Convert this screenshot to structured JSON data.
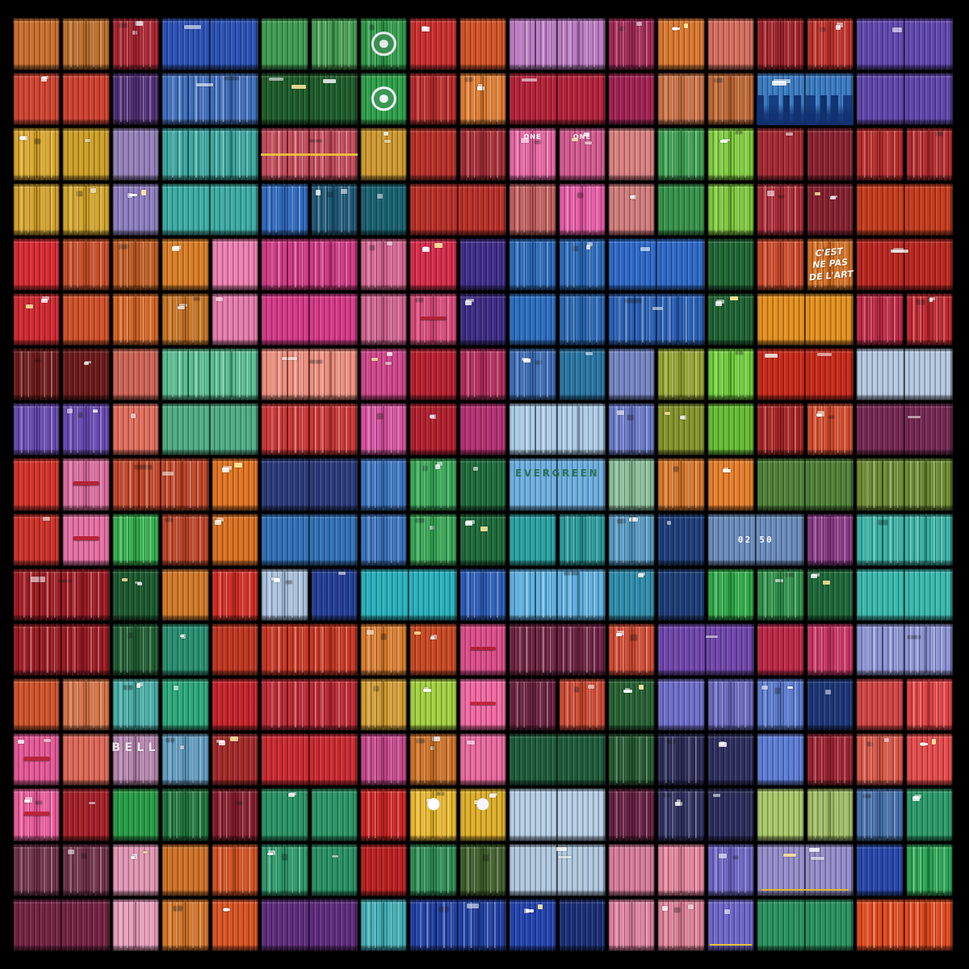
{
  "artwork": {
    "description": "Wall of multicoloured stacked shipping-container faces, 17 rows high, framed by a black border",
    "background_color": "#000000",
    "grid": {
      "columns": 19,
      "rows": 17
    },
    "painted_texts": [
      "ONE",
      "C'EST NE PAS DE L'ART",
      "EVERGREEN",
      "02 50",
      "BELL"
    ],
    "rows": [
      [
        {
          "c": "#c86c2c"
        },
        {
          "c": "#c8742c"
        },
        {
          "c": "#b42430"
        },
        {
          "c": "#2a50b4",
          "w": 2
        },
        {
          "c": "#3c9850"
        },
        {
          "c": "#46a454"
        },
        {
          "c": "#2ea04a",
          "f": "logo"
        },
        {
          "c": "#c62c2c"
        },
        {
          "c": "#cc5024"
        },
        {
          "c": "#c07cc8",
          "w": 2
        },
        {
          "c": "#a82858"
        },
        {
          "c": "#d4742c"
        },
        {
          "c": "#cc6858"
        },
        {
          "c": "#a42028"
        },
        {
          "c": "#c43028"
        },
        {
          "c": "#5c44a8",
          "w": 2
        }
      ],
      [
        {
          "c": "#d44430"
        },
        {
          "c": "#d2402e"
        },
        {
          "c": "#4a2a70"
        },
        {
          "c": "#3a68b4",
          "w": 2
        },
        {
          "c": "#1c5c28",
          "w": 2
        },
        {
          "c": "#2ea04a",
          "f": "logo"
        },
        {
          "c": "#c62c2c"
        },
        {
          "c": "#d4742c"
        },
        {
          "c": "#b42038",
          "w": 2
        },
        {
          "c": "#a02050"
        },
        {
          "c": "#d87848"
        },
        {
          "c": "#cc6c34"
        },
        {
          "c": "#3878c0",
          "w": 2,
          "f": "skyline"
        },
        {
          "c": "#5c44a8",
          "w": 2
        }
      ],
      [
        {
          "c": "#d8a428"
        },
        {
          "c": "#d8a828"
        },
        {
          "c": "#9c88c4"
        },
        {
          "c": "#38a49c",
          "w": 2
        },
        {
          "c": "#c04858",
          "w": 2,
          "f": "stripe"
        },
        {
          "c": "#d8a030"
        },
        {
          "c": "#c03028"
        },
        {
          "c": "#a02830"
        },
        {
          "c": "#e0609c",
          "t": "ONE",
          "ts": "one"
        },
        {
          "c": "#da5c94",
          "t": "ONE",
          "ts": "one"
        },
        {
          "c": "#e08484"
        },
        {
          "c": "#38984c"
        },
        {
          "c": "#78c438"
        },
        {
          "c": "#a82833"
        },
        {
          "c": "#8c2030"
        },
        {
          "c": "#c62c2c"
        },
        {
          "c": "#c22c30"
        }
      ],
      [
        {
          "c": "#d8a428"
        },
        {
          "c": "#d8a828"
        },
        {
          "c": "#8878b8"
        },
        {
          "c": "#38a49c",
          "w": 2
        },
        {
          "c": "#2c68c0"
        },
        {
          "c": "#1c5878"
        },
        {
          "c": "#186878"
        },
        {
          "c": "#c43028",
          "w": 2
        },
        {
          "c": "#c05c5c"
        },
        {
          "c": "#e658a4"
        },
        {
          "c": "#e08484"
        },
        {
          "c": "#38984c"
        },
        {
          "c": "#78c438"
        },
        {
          "c": "#a82833"
        },
        {
          "c": "#8c2030"
        },
        {
          "c": "#cc3c1c",
          "w": 2
        }
      ],
      [
        {
          "c": "#d42830"
        },
        {
          "c": "#d45028"
        },
        {
          "c": "#cc6020"
        },
        {
          "c": "#d87c24"
        },
        {
          "c": "#e87cac"
        },
        {
          "c": "#d83888",
          "w": 2
        },
        {
          "c": "#e06898"
        },
        {
          "c": "#d02848"
        },
        {
          "c": "#3c2a84"
        },
        {
          "c": "#2a6cc0"
        },
        {
          "c": "#2a6cc0"
        },
        {
          "c": "#2a64c0",
          "w": 2
        },
        {
          "c": "#1c6030"
        },
        {
          "c": "#d04828"
        },
        {
          "c": "#d87020",
          "t": "C'EST\nNE PAS\nDE L'ART",
          "ts": "graffiti"
        },
        {
          "c": "#c82820",
          "w": 2
        }
      ],
      [
        {
          "c": "#d42830"
        },
        {
          "c": "#d45028"
        },
        {
          "c": "#cc6020"
        },
        {
          "c": "#d87c24"
        },
        {
          "c": "#e87cac"
        },
        {
          "c": "#d83888",
          "w": 2
        },
        {
          "c": "#e06898"
        },
        {
          "c": "#e84c80",
          "f": "handle"
        },
        {
          "c": "#3c2a84"
        },
        {
          "c": "#2a6cc0"
        },
        {
          "c": "#2a6cc0"
        },
        {
          "c": "#2a64c0",
          "w": 2
        },
        {
          "c": "#1c6030"
        },
        {
          "c": "#e08c1c",
          "w": 2
        },
        {
          "c": "#c82848"
        },
        {
          "c": "#c82830"
        }
      ],
      [
        {
          "c": "#6c1818"
        },
        {
          "c": "#701a1a"
        },
        {
          "c": "#d86858"
        },
        {
          "c": "#54b88c",
          "w": 2
        },
        {
          "c": "#e88878",
          "w": 2
        },
        {
          "c": "#d84890"
        },
        {
          "c": "#c02030"
        },
        {
          "c": "#ac2858"
        },
        {
          "c": "#3868b0"
        },
        {
          "c": "#2878a8"
        },
        {
          "c": "#7888c8"
        },
        {
          "c": "#8c9c2c"
        },
        {
          "c": "#68c434"
        },
        {
          "c": "#cc2818",
          "w": 2
        },
        {
          "c": "#b4c8e0",
          "w": 2
        }
      ],
      [
        {
          "c": "#6848b4"
        },
        {
          "c": "#6848b4"
        },
        {
          "c": "#d86858"
        },
        {
          "c": "#54b88c",
          "w": 2
        },
        {
          "c": "#cc3434",
          "w": 2
        },
        {
          "c": "#d850a0"
        },
        {
          "c": "#c02030"
        },
        {
          "c": "#c03078"
        },
        {
          "c": "#a8c8e4",
          "w": 2
        },
        {
          "c": "#6878c8"
        },
        {
          "c": "#8c9c2c"
        },
        {
          "c": "#68c434"
        },
        {
          "c": "#a42020"
        },
        {
          "c": "#d04828"
        },
        {
          "c": "#782854",
          "w": 2
        }
      ],
      [
        {
          "c": "#d03028"
        },
        {
          "c": "#e870a4",
          "f": "handle"
        },
        {
          "c": "#cc4828",
          "w": 2
        },
        {
          "c": "#dc7020"
        },
        {
          "c": "#283878",
          "w": 2
        },
        {
          "c": "#3a78c8"
        },
        {
          "c": "#38b058"
        },
        {
          "c": "#1c6838"
        },
        {
          "c": "#68a8d8",
          "w": 2,
          "t": "EVERGREEN",
          "ts": "evergreen"
        },
        {
          "c": "#8cc49c"
        },
        {
          "c": "#dc7828"
        },
        {
          "c": "#dc7828"
        },
        {
          "c": "#4a7a34",
          "w": 2
        },
        {
          "c": "#6c8c30",
          "w": 2
        }
      ],
      [
        {
          "c": "#d03028"
        },
        {
          "c": "#e870a4",
          "f": "handle"
        },
        {
          "c": "#30a848"
        },
        {
          "c": "#cc4828"
        },
        {
          "c": "#dc7020"
        },
        {
          "c": "#3070b8",
          "w": 2
        },
        {
          "c": "#3a78c8"
        },
        {
          "c": "#38b058"
        },
        {
          "c": "#1c6838"
        },
        {
          "c": "#28a0a0"
        },
        {
          "c": "#28a0a0"
        },
        {
          "c": "#58a0cc"
        },
        {
          "c": "#1c3c78"
        },
        {
          "c": "#6888b8",
          "w": 2,
          "t": "02 50",
          "ts": "num"
        },
        {
          "c": "#8c3888"
        },
        {
          "c": "#38b8ac",
          "w": 2
        }
      ],
      [
        {
          "c": "#9c1820",
          "w": 2
        },
        {
          "c": "#1c5c30"
        },
        {
          "c": "#d87c28"
        },
        {
          "c": "#cc2820"
        },
        {
          "c": "#a4bcd8"
        },
        {
          "c": "#24409c"
        },
        {
          "c": "#28b4c0",
          "w": 2
        },
        {
          "c": "#2858b0"
        },
        {
          "c": "#58a8d8",
          "w": 2
        },
        {
          "c": "#3090b0"
        },
        {
          "c": "#1c3c78"
        },
        {
          "c": "#28a040"
        },
        {
          "c": "#2a8a44"
        },
        {
          "c": "#1c6838"
        },
        {
          "c": "#38b8ac",
          "w": 2
        }
      ],
      [
        {
          "c": "#9c1820",
          "w": 2
        },
        {
          "c": "#1c5c30"
        },
        {
          "c": "#2a9878"
        },
        {
          "c": "#cc3820"
        },
        {
          "c": "#c83420",
          "w": 2
        },
        {
          "c": "#dc7c2c"
        },
        {
          "c": "#d44c24"
        },
        {
          "c": "#e85090",
          "f": "handle"
        },
        {
          "c": "#6c2040",
          "w": 2
        },
        {
          "c": "#d04830"
        },
        {
          "c": "#7448b4",
          "w": 2
        },
        {
          "c": "#c42848"
        },
        {
          "c": "#c43060"
        },
        {
          "c": "#8890d0",
          "w": 2
        }
      ],
      [
        {
          "c": "#cc5028"
        },
        {
          "c": "#e07848"
        },
        {
          "c": "#48b4ac"
        },
        {
          "c": "#2aa478"
        },
        {
          "c": "#c02028"
        },
        {
          "c": "#c42834",
          "w": 2
        },
        {
          "c": "#d8a030"
        },
        {
          "c": "#9cc83c"
        },
        {
          "c": "#e8649c",
          "f": "handle"
        },
        {
          "c": "#6c2040"
        },
        {
          "c": "#d04830"
        },
        {
          "c": "#245c30"
        },
        {
          "c": "#6868c0"
        },
        {
          "c": "#6868c0"
        },
        {
          "c": "#5878d0"
        },
        {
          "c": "#1c3880"
        },
        {
          "c": "#e04848"
        },
        {
          "c": "#e04040"
        }
      ],
      [
        {
          "c": "#e85898",
          "f": "handle"
        },
        {
          "c": "#e06858"
        },
        {
          "c": "#c08cb8",
          "t": "BELL",
          "ts": "bell"
        },
        {
          "c": "#68a8d0"
        },
        {
          "c": "#a42828"
        },
        {
          "c": "#cc2830",
          "w": 2
        },
        {
          "c": "#d04890"
        },
        {
          "c": "#dc7828"
        },
        {
          "c": "#e8689c"
        },
        {
          "c": "#1c5838",
          "w": 2
        },
        {
          "c": "#245c30"
        },
        {
          "c": "#2c2c5c"
        },
        {
          "c": "#2c2c5c"
        },
        {
          "c": "#5878d0"
        },
        {
          "c": "#a02030"
        },
        {
          "c": "#e05848"
        },
        {
          "c": "#e04848"
        }
      ],
      [
        {
          "c": "#e85898",
          "f": "handle"
        },
        {
          "c": "#ac2028"
        },
        {
          "c": "#28a048"
        },
        {
          "c": "#1c7038"
        },
        {
          "c": "#801828"
        },
        {
          "c": "#2a9868"
        },
        {
          "c": "#2a9868"
        },
        {
          "c": "#c42020"
        },
        {
          "c": "#e0b028",
          "f": "dot"
        },
        {
          "c": "#e0b028",
          "f": "dot"
        },
        {
          "c": "#b8d0e8",
          "w": 2
        },
        {
          "c": "#6c2044"
        },
        {
          "c": "#2c2c5c"
        },
        {
          "c": "#2c2c5c"
        },
        {
          "c": "#a8c868"
        },
        {
          "c": "#a8c868"
        },
        {
          "c": "#4878b8"
        },
        {
          "c": "#2a9868"
        }
      ],
      [
        {
          "c": "#703048"
        },
        {
          "c": "#703048"
        },
        {
          "c": "#f0a0c0"
        },
        {
          "c": "#dc7828"
        },
        {
          "c": "#d45020"
        },
        {
          "c": "#2a9868"
        },
        {
          "c": "#2a9868"
        },
        {
          "c": "#c42020"
        },
        {
          "c": "#2a8a50"
        },
        {
          "c": "#3c5c28"
        },
        {
          "c": "#b8d0e8",
          "w": 2
        },
        {
          "c": "#e080a0"
        },
        {
          "c": "#e08098"
        },
        {
          "c": "#6860c0"
        },
        {
          "c": "#9890d0",
          "w": 2,
          "f": "yline"
        },
        {
          "c": "#2848b0"
        },
        {
          "c": "#28a050"
        }
      ],
      [
        {
          "c": "#702040",
          "w": 2
        },
        {
          "c": "#f0a0c0"
        },
        {
          "c": "#dc7828"
        },
        {
          "c": "#d45020"
        },
        {
          "c": "#5a2878",
          "w": 2
        },
        {
          "c": "#40b0b8"
        },
        {
          "c": "#2040a8",
          "w": 2
        },
        {
          "c": "#2040a8"
        },
        {
          "c": "#182c70"
        },
        {
          "c": "#e080a0"
        },
        {
          "c": "#e08098"
        },
        {
          "c": "#6860c0",
          "f": "yline"
        },
        {
          "c": "#2a9c64",
          "w": 2
        },
        {
          "c": "#e0481c",
          "w": 2
        }
      ]
    ]
  }
}
